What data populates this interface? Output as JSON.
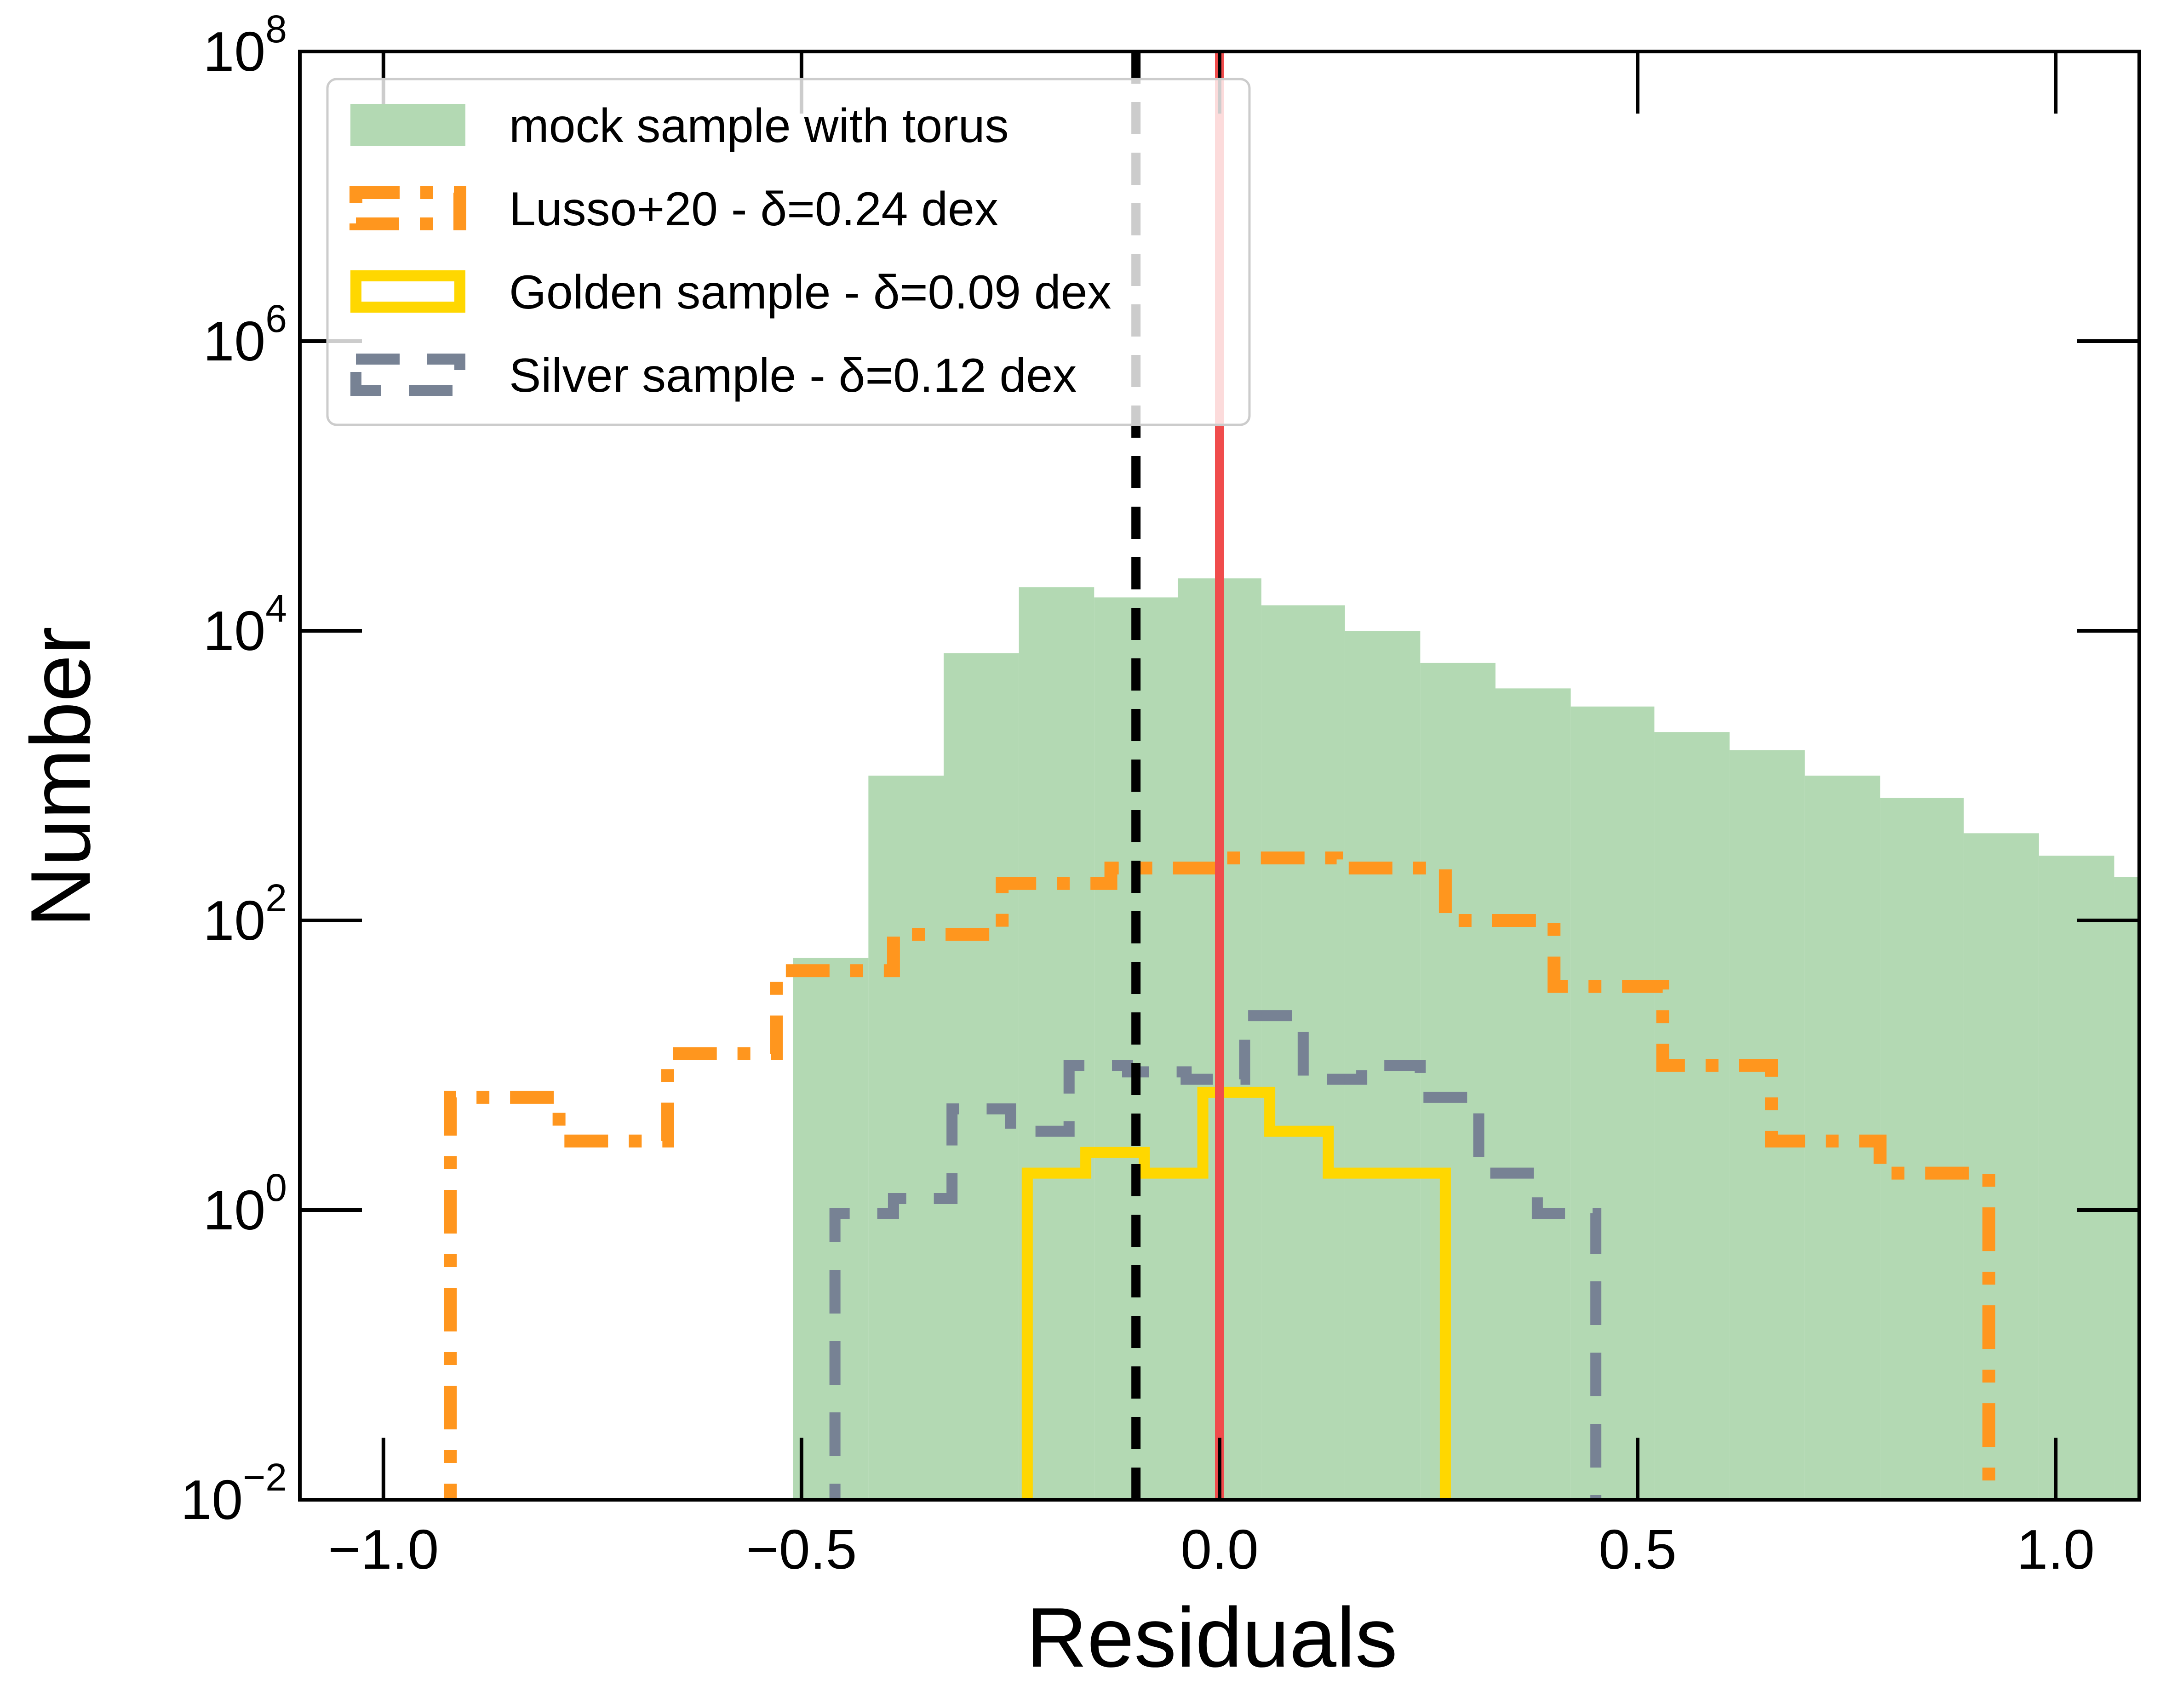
{
  "chart_data": {
    "type": "histogram",
    "xlabel": "Residuals",
    "ylabel": "Number",
    "xlim": [
      -1.1,
      1.1
    ],
    "ylim": [
      0.01,
      100000000
    ],
    "yscale": "log",
    "xticks": [
      -1.0,
      -0.5,
      0.0,
      0.5,
      1.0
    ],
    "xtick_labels": [
      "−1.0",
      "−0.5",
      "0.0",
      "0.5",
      "1.0"
    ],
    "yticks": [
      {
        "value": 0.01,
        "base": "10",
        "exp": "−2"
      },
      {
        "value": 1,
        "base": "10",
        "exp": "0"
      },
      {
        "value": 100,
        "base": "10",
        "exp": "2"
      },
      {
        "value": 10000,
        "base": "10",
        "exp": "4"
      },
      {
        "value": 1000000,
        "base": "10",
        "exp": "6"
      },
      {
        "value": 100000000,
        "base": "10",
        "exp": "8"
      }
    ],
    "reference_lines": [
      {
        "name": "mean-residual",
        "x": -0.1,
        "style": "dashed",
        "color": "#000000"
      },
      {
        "name": "zero-residual",
        "x": 0.0,
        "style": "solid",
        "color": "#f04c4c"
      }
    ],
    "series": [
      {
        "name": "mock sample with torus",
        "style": "filled",
        "color": "#b3d9b3",
        "edges": [
          -0.51,
          -0.42,
          -0.33,
          -0.24,
          -0.15,
          -0.05,
          0.05,
          0.15,
          0.24,
          0.33,
          0.42,
          0.52,
          0.61,
          0.7,
          0.79,
          0.89,
          0.98,
          1.07,
          1.16
        ],
        "values": [
          55,
          1000,
          7000,
          20000,
          17000,
          23000,
          15000,
          10000,
          6000,
          4000,
          3000,
          2000,
          1500,
          1000,
          700,
          400,
          280,
          200
        ]
      },
      {
        "name": "Lusso+20 - δ=0.24 dex",
        "style": "step-dashdot",
        "color": "#ff961e",
        "edges": [
          -0.92,
          -0.79,
          -0.66,
          -0.53,
          -0.39,
          -0.26,
          -0.13,
          0.0,
          0.14,
          0.27,
          0.4,
          0.53,
          0.66,
          0.79,
          0.92
        ],
        "values": [
          6,
          3,
          12,
          45,
          80,
          180,
          230,
          270,
          230,
          100,
          35,
          10,
          3,
          1.8
        ]
      },
      {
        "name": "Golden sample - δ=0.09 dex",
        "style": "step-solid",
        "color": "#ffd700",
        "edges": [
          -0.23,
          -0.16,
          -0.09,
          -0.02,
          0.06,
          0.13,
          0.27
        ],
        "values": [
          1.8,
          2.5,
          1.8,
          6.5,
          3.5,
          1.8
        ]
      },
      {
        "name": "Silver sample - δ=0.12 dex",
        "style": "step-dashed",
        "color": "#778294",
        "edges": [
          -0.46,
          -0.39,
          -0.32,
          -0.25,
          -0.18,
          -0.11,
          -0.04,
          0.03,
          0.1,
          0.17,
          0.24,
          0.31,
          0.38,
          0.45
        ],
        "values": [
          0.95,
          1.2,
          5,
          3.5,
          10,
          9,
          8,
          22,
          8,
          10,
          6,
          1.8,
          0.95
        ]
      }
    ]
  }
}
